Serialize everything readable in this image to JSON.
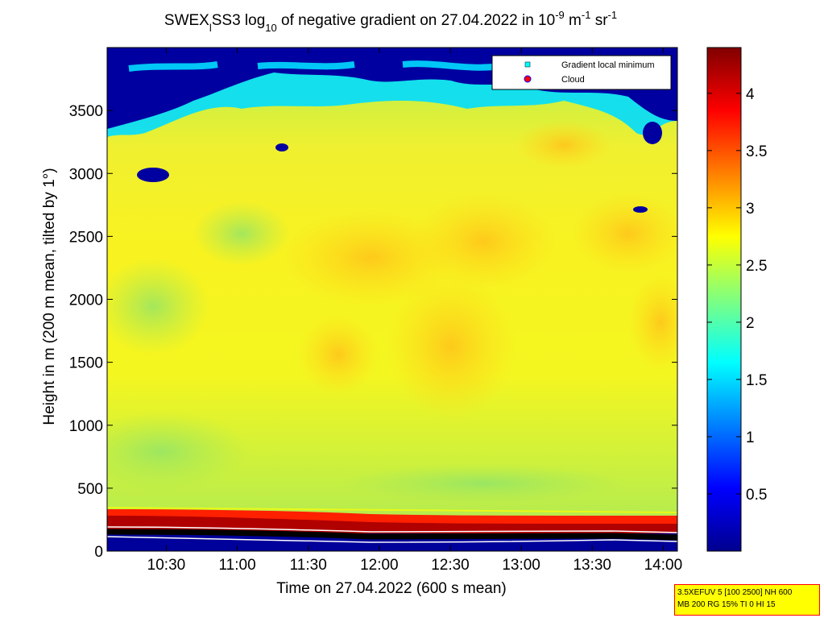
{
  "chart_data": {
    "type": "heatmap",
    "title": {
      "prefix": "SWEX",
      "prefix_sub": "l",
      "middle": "SS3 log",
      "log_sub": "10",
      "text": " of negative gradient on 27.04.2022 in 10",
      "exp1": "-9",
      "unit1": " m",
      "exp2": "-1",
      "unit2": " sr",
      "exp3": "-1"
    },
    "xlabel": "Time on 27.04.2022 (600 s mean)",
    "ylabel": "Height in m (200 m mean, tilted by 1°)",
    "xlim": [
      "10:05",
      "14:06"
    ],
    "ylim": [
      0,
      4000
    ],
    "x_ticks": [
      "10:30",
      "11:00",
      "11:30",
      "12:00",
      "12:30",
      "13:00",
      "13:30",
      "14:00"
    ],
    "y_ticks": [
      0,
      500,
      1000,
      1500,
      2000,
      2500,
      3000,
      3500
    ],
    "colorbar": {
      "colormap": "jet",
      "range": [
        0,
        4.4
      ],
      "ticks": [
        0.5,
        1,
        1.5,
        2,
        2.5,
        3,
        3.5,
        4
      ]
    },
    "legend": {
      "placement": "top-right",
      "entries": [
        {
          "label": "Gradient local minimum",
          "marker": "square",
          "color": "#00ffff"
        },
        {
          "label": "Cloud",
          "marker": "circle",
          "color": "#ff0000"
        }
      ]
    },
    "field_description": {
      "upper_layer_top_m": [
        3950,
        3600
      ],
      "strong_gradient_band_m": [
        180,
        330
      ],
      "gradient_minimum_height_m": [
        130,
        100
      ]
    },
    "info_box": {
      "line1": "3.5XEFUV 5 [100 2500] NH 600",
      "line2": "MB 200 RG 15% TI 0 HI 15"
    }
  }
}
